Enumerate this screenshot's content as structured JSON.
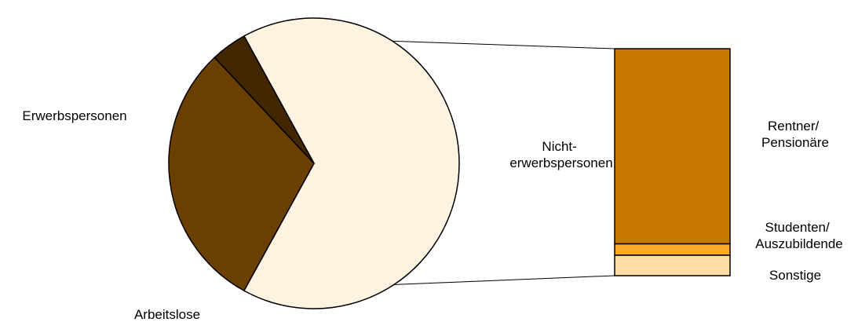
{
  "chart_data": {
    "type": "pie",
    "subtype": "pie-of-bar",
    "pie": {
      "slices": [
        {
          "label_lines": [
            "Nicht-",
            "erwerbspersonen"
          ],
          "value": 66,
          "color": "#FEF2E0",
          "exploded_to_bar": true
        },
        {
          "label_lines": [
            "Erwerbspersonen"
          ],
          "value": 30,
          "color": "#6B3F00"
        },
        {
          "label_lines": [
            "Arbeitslose"
          ],
          "value": 4,
          "color": "#412600"
        }
      ]
    },
    "bar": {
      "segments": [
        {
          "label_lines": [
            "Rentner/",
            "Pensionäre"
          ],
          "value": 86,
          "color": "#C97800"
        },
        {
          "label_lines": [
            "Studenten/",
            "Auszubildende"
          ],
          "value": 5,
          "color": "#FFA928"
        },
        {
          "label_lines": [
            "Sonstige"
          ],
          "value": 9,
          "color": "#FFDCA6"
        }
      ]
    },
    "title": "",
    "legend": "none"
  }
}
